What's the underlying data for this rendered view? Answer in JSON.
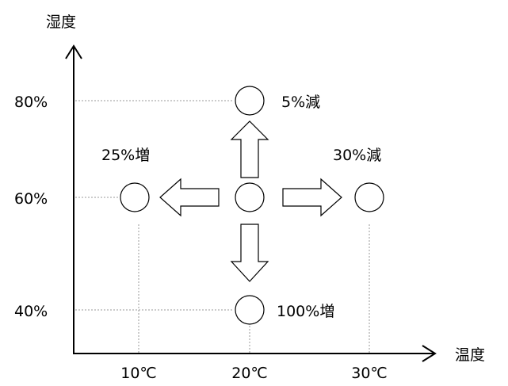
{
  "axes": {
    "y_title": "湿度",
    "x_title": "温度",
    "y_ticks": [
      "80%",
      "60%",
      "40%"
    ],
    "x_ticks": [
      "10℃",
      "20℃",
      "30℃"
    ]
  },
  "points": {
    "center": {
      "temperature": "20℃",
      "humidity": "60%"
    },
    "up": {
      "temperature": "20℃",
      "humidity": "80%",
      "label": "5%減"
    },
    "left": {
      "temperature": "10℃",
      "humidity": "60%",
      "label": "25%増"
    },
    "right": {
      "temperature": "30℃",
      "humidity": "60%",
      "label": "30%減"
    },
    "down": {
      "temperature": "20℃",
      "humidity": "40%",
      "label": "100%増"
    }
  },
  "colors": {
    "line": "#000000",
    "grid": "#999999",
    "background": "#ffffff"
  }
}
